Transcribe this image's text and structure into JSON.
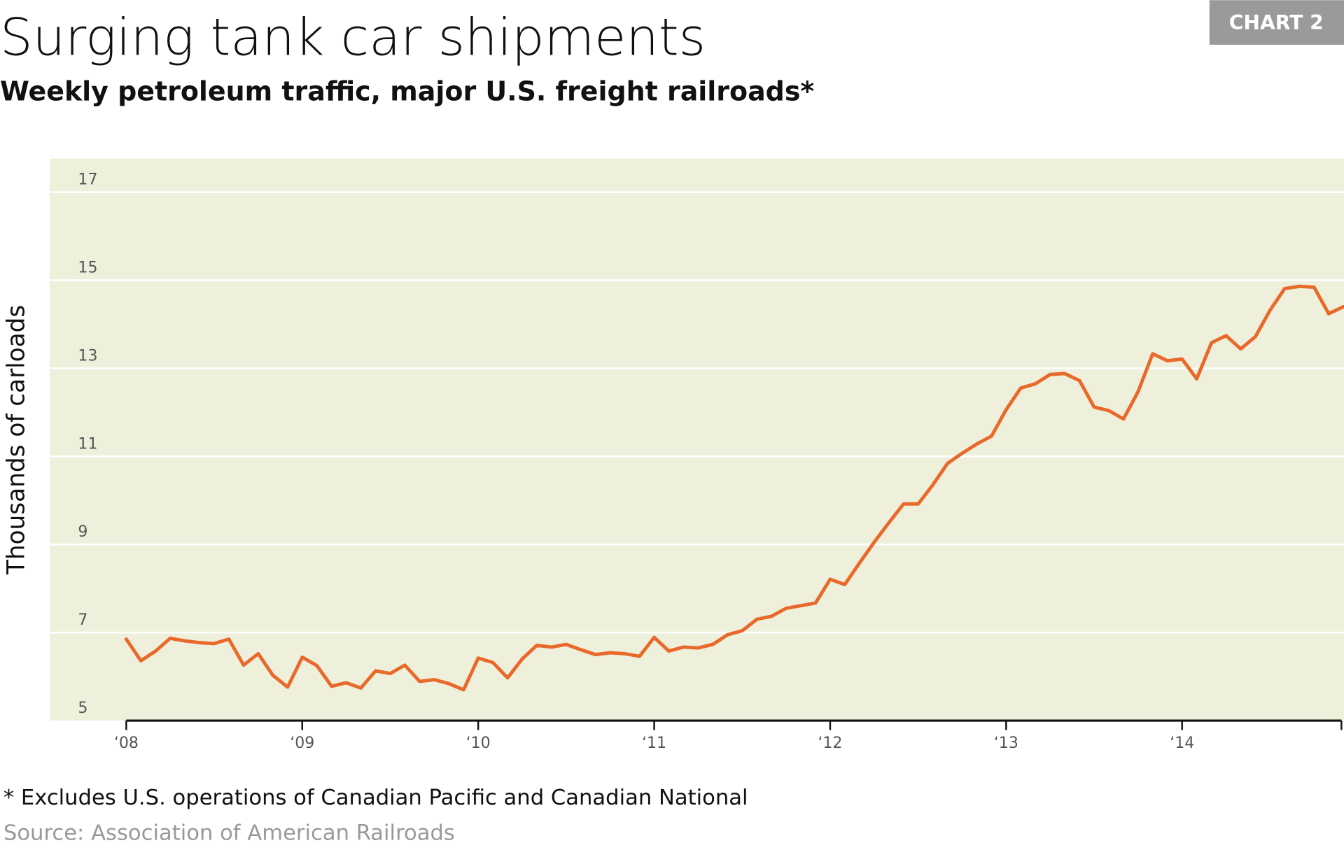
{
  "chart_data": {
    "type": "line",
    "badge": "CHART 2",
    "title": "Surging tank car shipments",
    "subtitle": "Weekly petroleum traffic, major U.S. freight railroads*",
    "y_label": "Thousands of carloads",
    "footnote": "* Excludes U.S. operations of Canadian Pacific and Canadian National",
    "source": "Source: Association of American Railroads",
    "color": "#e8692a",
    "background": "#eef0dc",
    "grid": true,
    "x": [
      2008,
      2008.083,
      2008.167,
      2008.25,
      2008.333,
      2008.417,
      2008.5,
      2008.583,
      2008.667,
      2008.75,
      2008.833,
      2008.917,
      2009,
      2009.083,
      2009.167,
      2009.25,
      2009.333,
      2009.417,
      2009.5,
      2009.583,
      2009.667,
      2009.75,
      2009.833,
      2009.917,
      2010,
      2010.083,
      2010.167,
      2010.25,
      2010.333,
      2010.417,
      2010.5,
      2010.583,
      2010.667,
      2010.75,
      2010.833,
      2010.917,
      2011,
      2011.083,
      2011.167,
      2011.25,
      2011.333,
      2011.417,
      2011.5,
      2011.583,
      2011.667,
      2011.75,
      2011.833,
      2011.917,
      2012,
      2012.083,
      2012.167,
      2012.25,
      2012.333,
      2012.417,
      2012.5,
      2012.583,
      2012.667,
      2012.75,
      2012.833,
      2012.917,
      2013,
      2013.083,
      2013.167,
      2013.25,
      2013.333,
      2013.417,
      2013.5,
      2013.583,
      2013.667,
      2013.75,
      2013.833,
      2013.917,
      2014,
      2014.083,
      2014.167,
      2014.25,
      2014.333,
      2014.417,
      2014.5,
      2014.583,
      2014.667,
      2014.75,
      2014.833,
      2014.917
    ],
    "values": [
      6.85,
      6.36,
      6.58,
      6.87,
      6.81,
      6.77,
      6.75,
      6.85,
      6.26,
      6.52,
      6.03,
      5.76,
      6.44,
      6.25,
      5.78,
      5.86,
      5.74,
      6.13,
      6.07,
      6.26,
      5.89,
      5.93,
      5.84,
      5.7,
      6.42,
      6.32,
      5.97,
      6.4,
      6.71,
      6.67,
      6.73,
      6.61,
      6.5,
      6.54,
      6.52,
      6.46,
      6.89,
      6.58,
      6.67,
      6.65,
      6.73,
      6.95,
      7.04,
      7.3,
      7.37,
      7.55,
      7.61,
      7.67,
      8.21,
      8.09,
      8.58,
      9.05,
      9.49,
      9.92,
      9.92,
      10.35,
      10.84,
      11.07,
      11.28,
      11.46,
      12.06,
      12.55,
      12.65,
      12.86,
      12.88,
      12.72,
      12.12,
      12.04,
      11.85,
      12.47,
      13.33,
      13.17,
      13.21,
      12.76,
      13.58,
      13.74,
      13.44,
      13.72,
      14.32,
      14.81,
      14.86,
      14.84,
      14.24,
      14.4
    ],
    "xlim": [
      2007.565,
      2014.92
    ],
    "ylim": [
      5,
      17.76
    ],
    "xticks": [
      {
        "value": 2008,
        "label": "‘08"
      },
      {
        "value": 2009,
        "label": "‘09"
      },
      {
        "value": 2010,
        "label": "‘10"
      },
      {
        "value": 2011,
        "label": "‘11"
      },
      {
        "value": 2012,
        "label": "‘12"
      },
      {
        "value": 2013,
        "label": "‘13"
      },
      {
        "value": 2014,
        "label": "‘14"
      }
    ],
    "yticks": [
      5,
      7,
      9,
      11,
      13,
      15,
      17
    ]
  }
}
